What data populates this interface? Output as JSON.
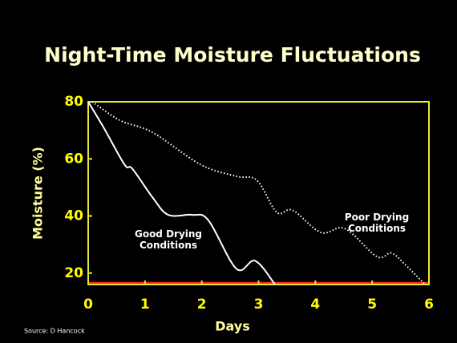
{
  "chart_data": {
    "type": "line",
    "title": "Night-Time Moisture Fluctuations",
    "xlabel": "Days",
    "ylabel": "Moisture (%)",
    "source": "Source: D Hancock",
    "xlim": [
      0,
      6
    ],
    "xticks": [
      0,
      1,
      2,
      3,
      4,
      5,
      6
    ],
    "ylim": [
      16,
      80
    ],
    "yticks": [
      20,
      40,
      60,
      80
    ],
    "threshold": {
      "value": 16.5,
      "color": "#ff2020"
    },
    "axis_color": "#e8e830",
    "series": [
      {
        "name": "Good Drying Conditions",
        "color": "#ffffff",
        "style": "solid",
        "x": [
          0,
          0.28,
          0.64,
          0.78,
          1.13,
          1.41,
          1.84,
          2.12,
          2.61,
          2.94,
          3.29
        ],
        "values": [
          80,
          70.7,
          58,
          56.5,
          46.6,
          40.4,
          40.4,
          38.4,
          21.5,
          24.3,
          16
        ]
      },
      {
        "name": "Poor Drying Conditions",
        "color": "#ffffff",
        "style": "dotted",
        "x": [
          0.07,
          0.56,
          1.13,
          1.98,
          2.61,
          2.97,
          3.32,
          3.6,
          4.1,
          4.52,
          5.08,
          5.34,
          5.58,
          5.93
        ],
        "values": [
          80,
          73.5,
          69.3,
          58,
          53.9,
          52.5,
          41.3,
          42,
          34.2,
          35.6,
          25.8,
          27,
          23,
          16
        ]
      }
    ]
  }
}
